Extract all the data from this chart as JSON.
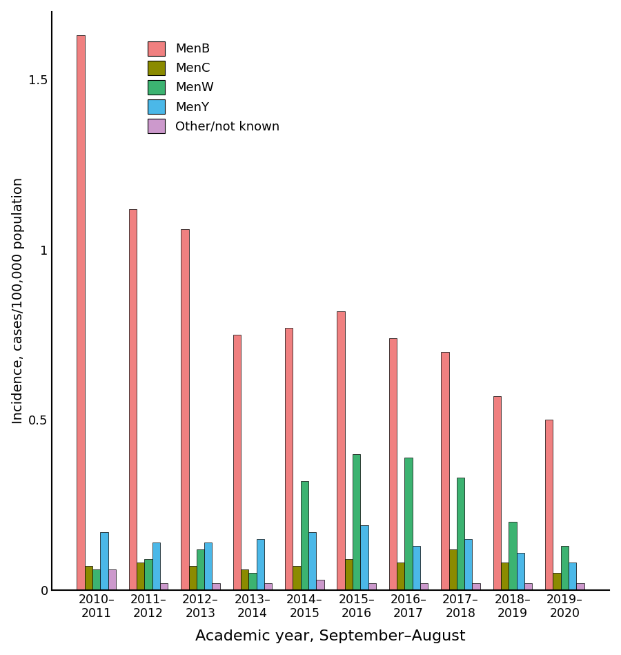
{
  "categories": [
    "2010–\n2011",
    "2011–\n2012",
    "2012–\n2013",
    "2013–\n2014",
    "2014–\n2015",
    "2015–\n2016",
    "2016–\n2017",
    "2017–\n2018",
    "2018–\n2019",
    "2019–\n2020"
  ],
  "MenB": [
    1.63,
    1.12,
    1.06,
    0.75,
    0.77,
    0.82,
    0.74,
    0.7,
    0.57,
    0.5
  ],
  "MenC": [
    0.07,
    0.08,
    0.07,
    0.06,
    0.07,
    0.09,
    0.08,
    0.12,
    0.08,
    0.05
  ],
  "MenW": [
    0.06,
    0.09,
    0.12,
    0.05,
    0.32,
    0.4,
    0.39,
    0.33,
    0.2,
    0.13
  ],
  "MenY": [
    0.17,
    0.14,
    0.14,
    0.15,
    0.17,
    0.19,
    0.13,
    0.15,
    0.11,
    0.08
  ],
  "Other": [
    0.06,
    0.02,
    0.02,
    0.02,
    0.03,
    0.02,
    0.02,
    0.02,
    0.02,
    0.02
  ],
  "colors": {
    "MenB": "#F08080",
    "MenC": "#8B8B00",
    "MenW": "#3CB371",
    "MenY": "#4BB8E8",
    "Other": "#CC99CC"
  },
  "legend_labels": [
    "MenB",
    "MenC",
    "MenW",
    "MenY",
    "Other/not known"
  ],
  "ylabel": "Incidence, cases/100,000 population",
  "xlabel": "Academic year, September–August",
  "ylim": [
    0,
    1.7
  ],
  "yticks": [
    0,
    0.5,
    1.0,
    1.5
  ],
  "bar_width": 0.15,
  "figsize": [
    9.0,
    9.49
  ],
  "dpi": 100
}
